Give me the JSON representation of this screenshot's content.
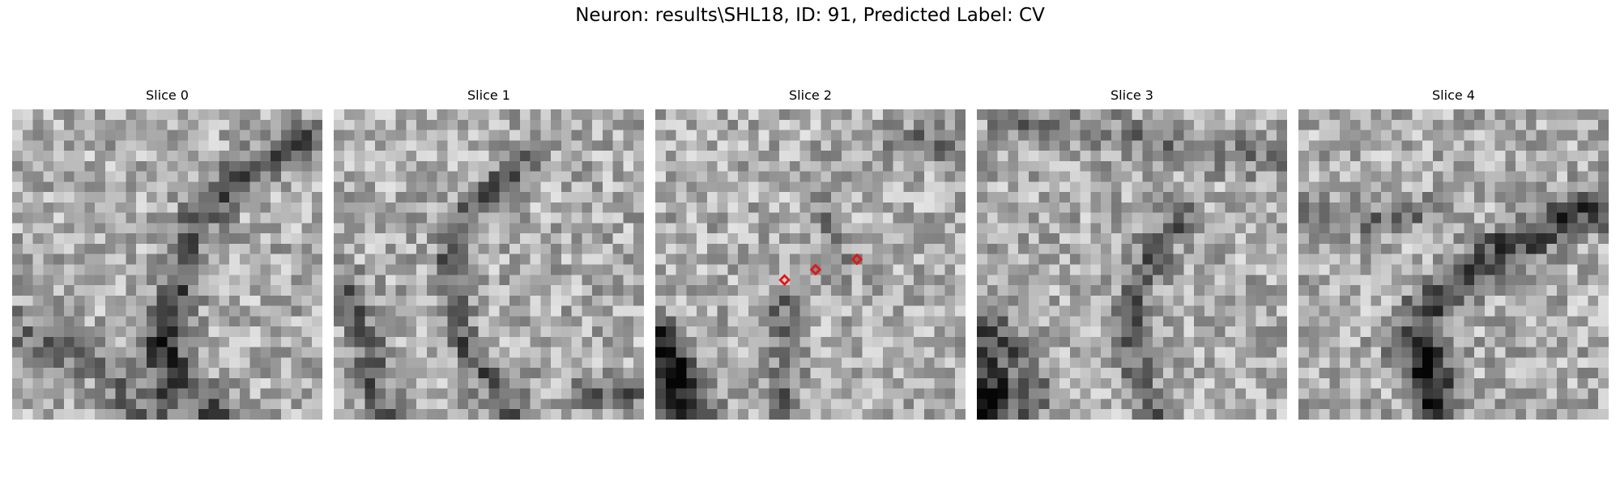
{
  "figure": {
    "title": "Neuron: results\\SHL18, ID: 91, Predicted Label: CV"
  },
  "panels": [
    {
      "title": "Slice 0"
    },
    {
      "title": "Slice 1"
    },
    {
      "title": "Slice 2"
    },
    {
      "title": "Slice 3"
    },
    {
      "title": "Slice 4"
    }
  ],
  "image": {
    "grid_cells": 30,
    "colormap": "gray",
    "marker_color": "#e01818"
  },
  "markers": {
    "slice_index": 2,
    "points": [
      {
        "col": 12,
        "row": 16
      },
      {
        "col": 15,
        "row": 15
      },
      {
        "col": 19,
        "row": 14
      }
    ]
  }
}
